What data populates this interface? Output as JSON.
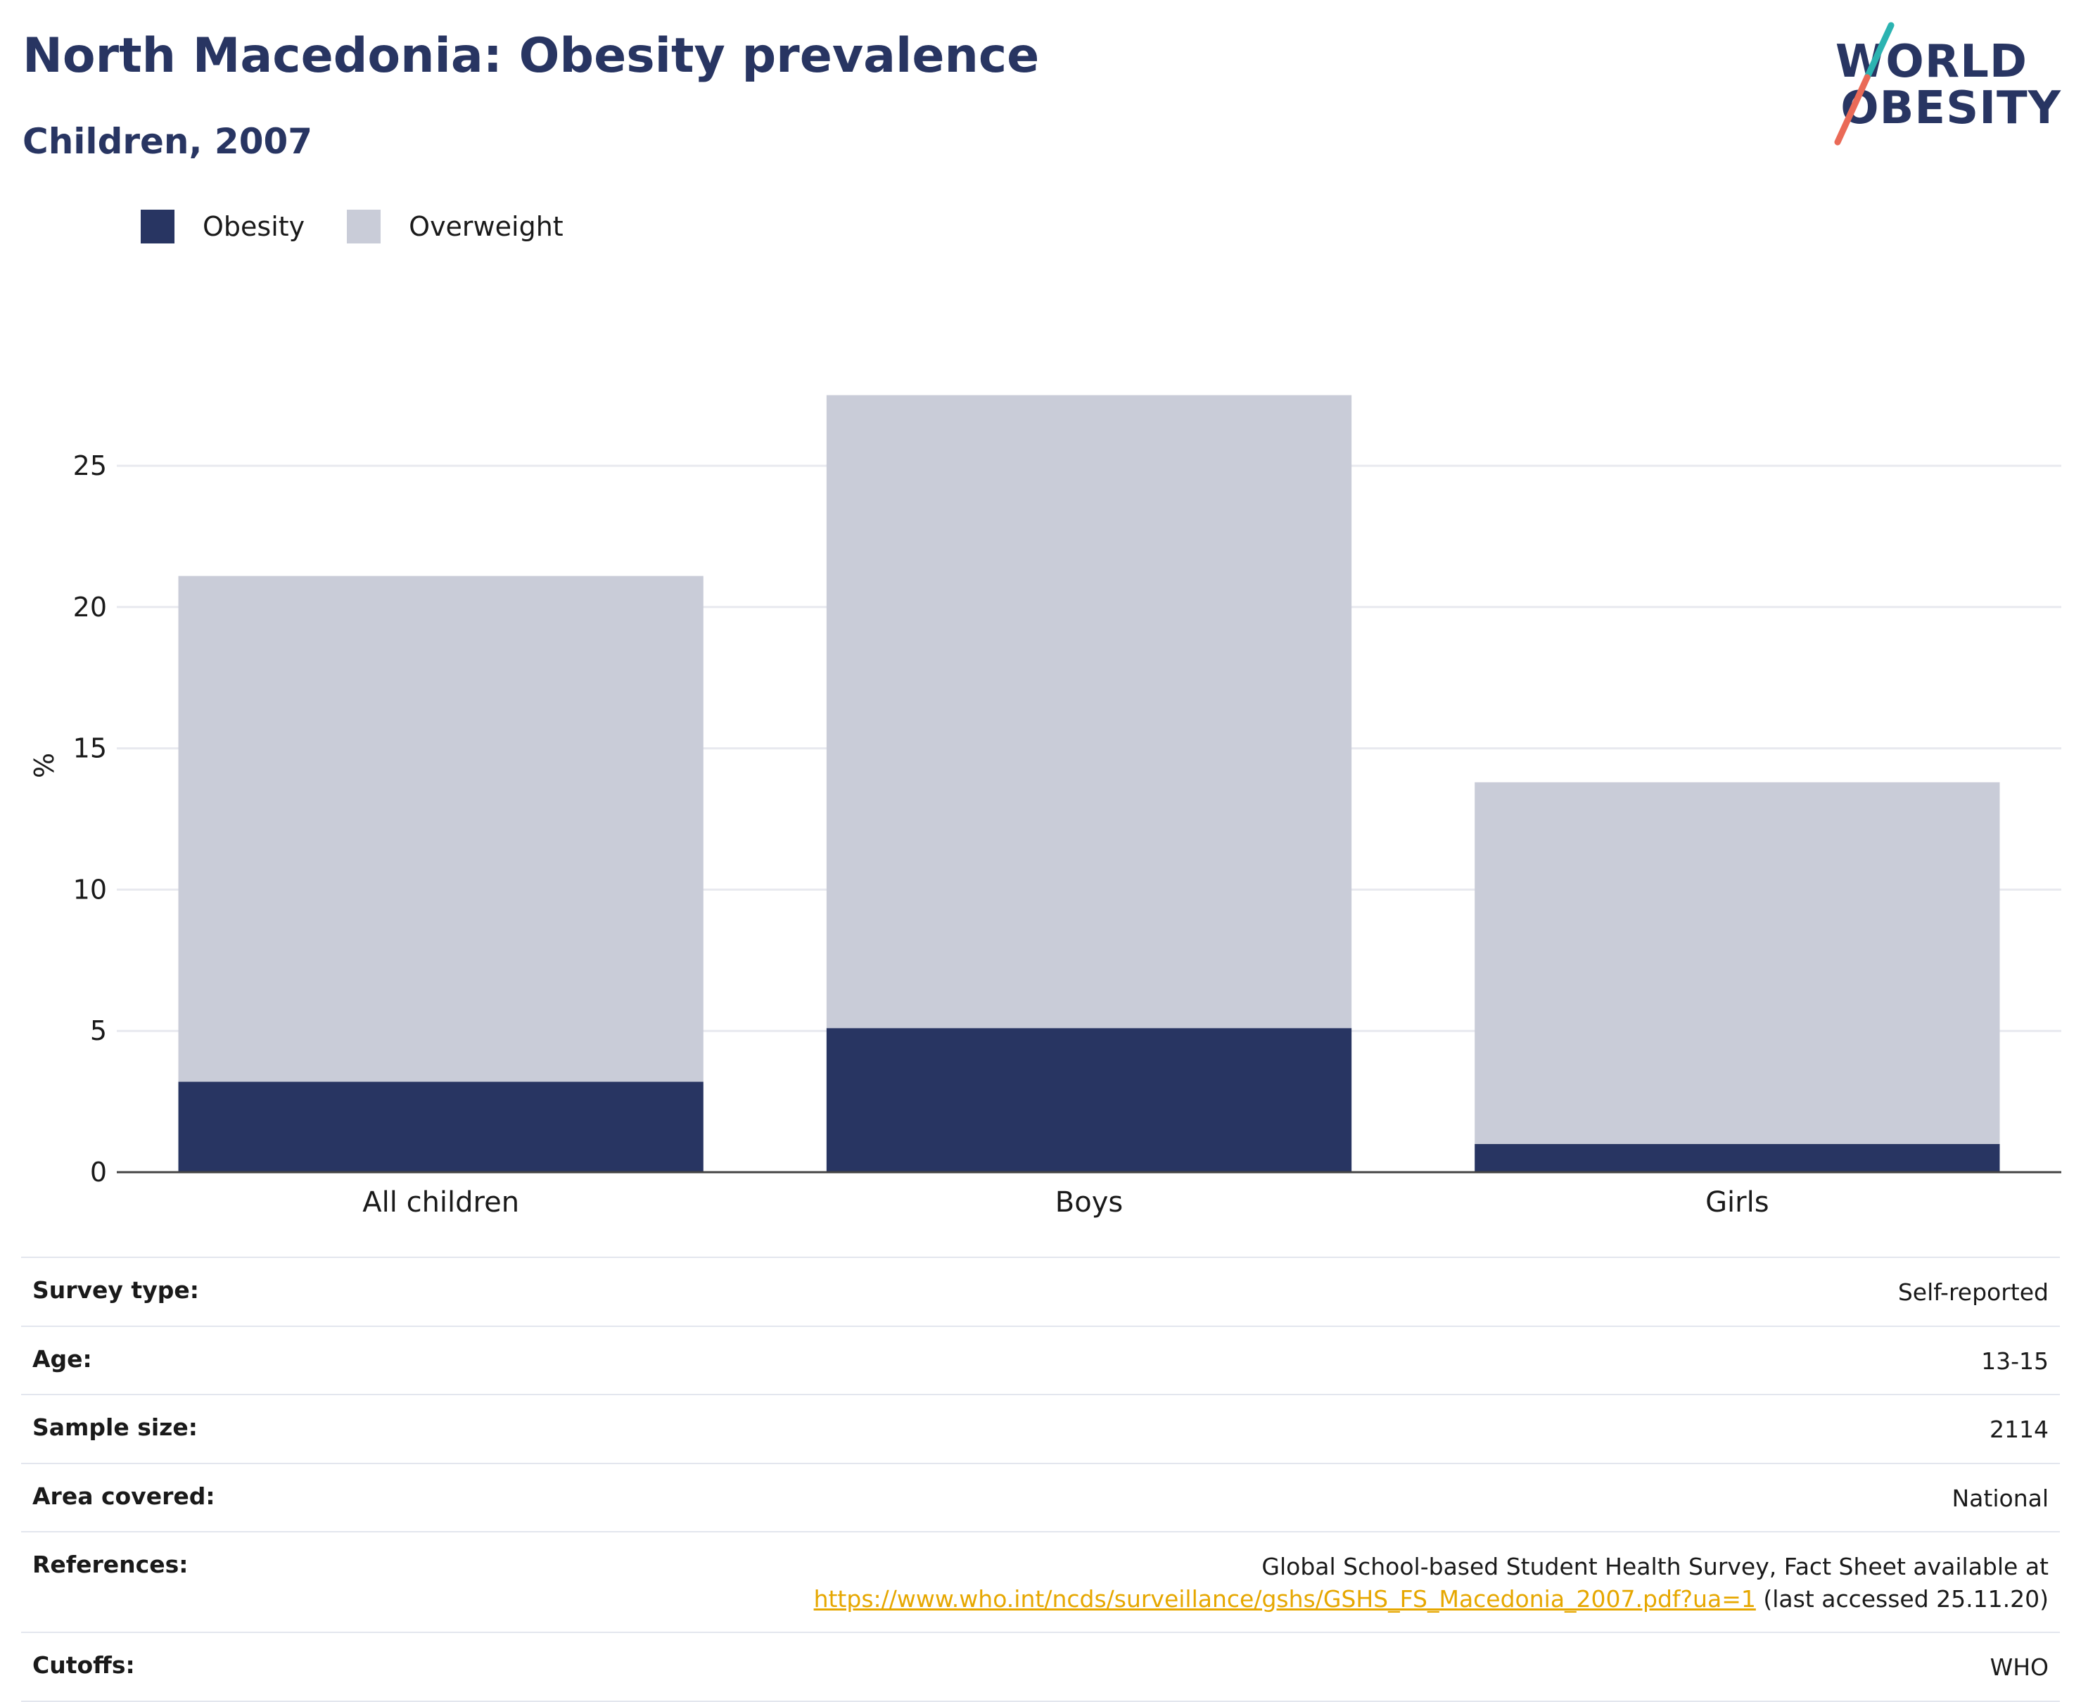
{
  "header": {
    "title": "North Macedonia: Obesity prevalence",
    "subtitle": "Children, 2007"
  },
  "logo": {
    "line1": "WORLD",
    "line2": "OBESITY"
  },
  "legend": [
    {
      "label": "Obesity",
      "color": "#283562"
    },
    {
      "label": "Overweight",
      "color": "#c9ccd8"
    }
  ],
  "chart_data": {
    "type": "bar",
    "stacked": true,
    "ylabel": "%",
    "ylim": [
      0,
      28
    ],
    "yticks": [
      0,
      5,
      10,
      15,
      20,
      25
    ],
    "grid": true,
    "legend_position": "top-left",
    "categories": [
      "All children",
      "Boys",
      "Girls"
    ],
    "series": [
      {
        "name": "Obesity",
        "color": "#283562",
        "values": [
          3.2,
          5.1,
          1.0
        ]
      },
      {
        "name": "Overweight",
        "color": "#c9ccd8",
        "values": [
          17.9,
          22.4,
          12.8
        ]
      }
    ]
  },
  "info": [
    {
      "label": "Survey type:",
      "value": "Self-reported"
    },
    {
      "label": "Age:",
      "value": "13-15"
    },
    {
      "label": "Sample size:",
      "value": "2114"
    },
    {
      "label": "Area covered:",
      "value": "National"
    },
    {
      "label": "References:",
      "value": "Global School-based Student Health Survey, Fact Sheet available at",
      "link": "https://www.who.int/ncds/surveillance/gshs/GSHS_FS_Macedonia_2007.pdf?ua=1",
      "suffix": " (last accessed 25.11.20)"
    },
    {
      "label": "Cutoffs:",
      "value": "WHO"
    }
  ]
}
